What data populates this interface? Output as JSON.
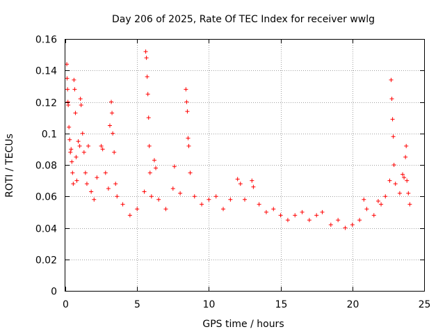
{
  "chart_data": {
    "type": "scatter",
    "title": "Day 206 of 2025, Rate Of TEC Index for receiver wwlg",
    "xlabel": "GPS time / hours",
    "ylabel": "ROTI / TECUs",
    "xlim": [
      0,
      25
    ],
    "ylim": [
      0,
      0.16
    ],
    "x_ticks": [
      0,
      5,
      10,
      15,
      20,
      25
    ],
    "x_tick_labels": [
      "0",
      "5",
      "10",
      "15",
      "20",
      "25"
    ],
    "y_ticks": [
      0,
      0.02,
      0.04,
      0.06,
      0.08,
      0.1,
      0.12,
      0.14,
      0.16
    ],
    "y_tick_labels": [
      "0",
      "0.02",
      "0.04",
      "0.06",
      "0.08",
      "0.1",
      "0.12",
      "0.14",
      "0.16"
    ],
    "grid": true,
    "marker": "+",
    "series_color": "#ff0000",
    "series": [
      {
        "name": "ROTI",
        "points": [
          [
            0.1,
            0.144
          ],
          [
            0.12,
            0.135
          ],
          [
            0.15,
            0.128
          ],
          [
            0.18,
            0.12
          ],
          [
            0.2,
            0.118
          ],
          [
            0.25,
            0.104
          ],
          [
            0.3,
            0.096
          ],
          [
            0.35,
            0.088
          ],
          [
            0.4,
            0.09
          ],
          [
            0.45,
            0.082
          ],
          [
            0.5,
            0.075
          ],
          [
            0.55,
            0.068
          ],
          [
            0.6,
            0.134
          ],
          [
            0.65,
            0.128
          ],
          [
            0.7,
            0.113
          ],
          [
            0.75,
            0.085
          ],
          [
            0.8,
            0.07
          ],
          [
            0.9,
            0.095
          ],
          [
            1.0,
            0.092
          ],
          [
            1.05,
            0.122
          ],
          [
            1.1,
            0.118
          ],
          [
            1.2,
            0.1
          ],
          [
            1.3,
            0.088
          ],
          [
            1.4,
            0.075
          ],
          [
            1.5,
            0.068
          ],
          [
            1.6,
            0.092
          ],
          [
            1.8,
            0.063
          ],
          [
            2.0,
            0.058
          ],
          [
            2.2,
            0.072
          ],
          [
            2.5,
            0.092
          ],
          [
            2.6,
            0.09
          ],
          [
            2.8,
            0.075
          ],
          [
            3.0,
            0.065
          ],
          [
            3.1,
            0.105
          ],
          [
            3.2,
            0.12
          ],
          [
            3.25,
            0.113
          ],
          [
            3.3,
            0.1
          ],
          [
            3.4,
            0.088
          ],
          [
            3.5,
            0.068
          ],
          [
            3.6,
            0.06
          ],
          [
            4.0,
            0.055
          ],
          [
            4.5,
            0.048
          ],
          [
            5.0,
            0.052
          ],
          [
            5.5,
            0.063
          ],
          [
            5.6,
            0.152
          ],
          [
            5.65,
            0.148
          ],
          [
            5.7,
            0.136
          ],
          [
            5.75,
            0.125
          ],
          [
            5.8,
            0.11
          ],
          [
            5.85,
            0.092
          ],
          [
            5.9,
            0.075
          ],
          [
            6.0,
            0.06
          ],
          [
            6.2,
            0.083
          ],
          [
            6.3,
            0.078
          ],
          [
            6.5,
            0.058
          ],
          [
            7.0,
            0.052
          ],
          [
            7.5,
            0.065
          ],
          [
            7.6,
            0.079
          ],
          [
            8.0,
            0.062
          ],
          [
            8.4,
            0.128
          ],
          [
            8.45,
            0.12
          ],
          [
            8.5,
            0.114
          ],
          [
            8.55,
            0.097
          ],
          [
            8.6,
            0.092
          ],
          [
            8.7,
            0.075
          ],
          [
            9.0,
            0.06
          ],
          [
            9.5,
            0.055
          ],
          [
            10.0,
            0.058
          ],
          [
            10.5,
            0.06
          ],
          [
            11.0,
            0.052
          ],
          [
            11.5,
            0.058
          ],
          [
            12.0,
            0.071
          ],
          [
            12.2,
            0.068
          ],
          [
            12.5,
            0.058
          ],
          [
            13.0,
            0.07
          ],
          [
            13.1,
            0.066
          ],
          [
            13.5,
            0.055
          ],
          [
            14.0,
            0.05
          ],
          [
            14.5,
            0.052
          ],
          [
            15.0,
            0.048
          ],
          [
            15.5,
            0.045
          ],
          [
            16.0,
            0.048
          ],
          [
            16.5,
            0.05
          ],
          [
            17.0,
            0.045
          ],
          [
            17.5,
            0.048
          ],
          [
            17.9,
            0.05
          ],
          [
            18.5,
            0.042
          ],
          [
            19.0,
            0.045
          ],
          [
            19.5,
            0.04
          ],
          [
            20.0,
            0.042
          ],
          [
            20.5,
            0.045
          ],
          [
            20.8,
            0.058
          ],
          [
            21.0,
            0.052
          ],
          [
            21.5,
            0.048
          ],
          [
            21.8,
            0.057
          ],
          [
            22.0,
            0.055
          ],
          [
            22.3,
            0.06
          ],
          [
            22.6,
            0.07
          ],
          [
            22.7,
            0.134
          ],
          [
            22.75,
            0.122
          ],
          [
            22.8,
            0.109
          ],
          [
            22.85,
            0.098
          ],
          [
            22.9,
            0.08
          ],
          [
            23.0,
            0.068
          ],
          [
            23.3,
            0.062
          ],
          [
            23.5,
            0.074
          ],
          [
            23.6,
            0.072
          ],
          [
            23.7,
            0.085
          ],
          [
            23.75,
            0.092
          ],
          [
            23.8,
            0.07
          ],
          [
            23.9,
            0.062
          ],
          [
            24.0,
            0.055
          ]
        ]
      }
    ]
  }
}
